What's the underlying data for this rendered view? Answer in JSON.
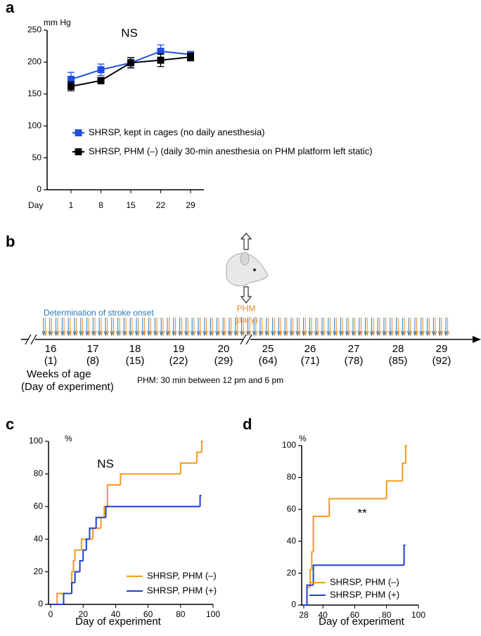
{
  "chart_data": [
    {
      "panel": "a",
      "type": "line",
      "y_unit": "mm Hg",
      "xlabel": "Day",
      "annotation": "NS",
      "categories": [
        "1",
        "8",
        "15",
        "22",
        "29"
      ],
      "ylim": [
        0,
        250
      ],
      "yticks": [
        0,
        50,
        100,
        150,
        200,
        250
      ],
      "series": [
        {
          "name": "SHRSP, kept in cages (no daily anesthesia)",
          "color": "#1f4fe0",
          "values": [
            173,
            188,
            199,
            217,
            212
          ],
          "errors": [
            11,
            9,
            8,
            10,
            4
          ]
        },
        {
          "name": "SHRSP, PHM (–) (daily 30-min anesthesia on PHM platform left static)",
          "color": "#000000",
          "values": [
            162,
            171,
            199,
            203,
            208
          ],
          "errors": [
            7,
            5,
            8,
            10,
            6
          ]
        }
      ]
    },
    {
      "panel": "c",
      "type": "step",
      "y_unit": "%",
      "xlabel": "Day of experiment",
      "annotation": "NS",
      "xlim": [
        0,
        100
      ],
      "xticks": [
        0,
        20,
        40,
        60,
        80,
        100
      ],
      "ylim": [
        0,
        100
      ],
      "yticks": [
        0,
        20,
        40,
        60,
        80,
        100
      ],
      "series": [
        {
          "name": "SHRSP, PHM (–)",
          "color": "#f39a1e",
          "x": [
            0,
            4,
            13,
            14,
            15,
            19,
            26,
            31,
            33,
            35,
            43,
            80,
            90,
            93
          ],
          "values": [
            0,
            6.7,
            20,
            26.7,
            33.3,
            40,
            46.7,
            53.3,
            60,
            73.3,
            80,
            86.7,
            93.3,
            100
          ]
        },
        {
          "name": "SHRSP, PHM (+)",
          "color": "#1f3fd0",
          "x": [
            0,
            8,
            13,
            15,
            18,
            20,
            22,
            24,
            28,
            34,
            92
          ],
          "values": [
            0,
            6.7,
            13.3,
            20,
            26.7,
            33.3,
            40,
            46.7,
            53.3,
            60,
            66.7
          ]
        }
      ]
    },
    {
      "panel": "d",
      "type": "step",
      "y_unit": "%",
      "xlabel": "Day of experiment",
      "annotation": "**",
      "xlim": [
        28,
        100
      ],
      "xticks": [
        28,
        40,
        60,
        80,
        100
      ],
      "ylim": [
        0,
        100
      ],
      "yticks": [
        0,
        20,
        40,
        60,
        80,
        100
      ],
      "series": [
        {
          "name": "SHRSP, PHM (–)",
          "color": "#f39a1e",
          "x": [
            28,
            30,
            32,
            33,
            34,
            44,
            80,
            90,
            92
          ],
          "values": [
            0,
            11.1,
            22.2,
            33.3,
            55.6,
            66.7,
            77.8,
            88.9,
            100
          ]
        },
        {
          "name": "SHRSP, PHM (+)",
          "color": "#1f3fd0",
          "x": [
            28,
            30,
            34,
            91
          ],
          "values": [
            0,
            12.5,
            25,
            37.5
          ]
        }
      ]
    }
  ],
  "timeline": {
    "panel": "b",
    "onset_label": "Determination of stroke onset",
    "phm_label": "PHM",
    "phm_sub": "(daily)",
    "weeks": [
      {
        "week": "16",
        "day": "(1)"
      },
      {
        "week": "17",
        "day": "(8)"
      },
      {
        "week": "18",
        "day": "(15)"
      },
      {
        "week": "19",
        "day": "(22)"
      },
      {
        "week": "20",
        "day": "(29)"
      },
      {
        "week": "25",
        "day": "(64)"
      },
      {
        "week": "26",
        "day": "(71)"
      },
      {
        "week": "27",
        "day": "(78)"
      },
      {
        "week": "28",
        "day": "(85)"
      },
      {
        "week": "29",
        "day": "(92)"
      }
    ],
    "axis_label_1": "Weeks of age",
    "axis_label_2": "(Day of experiment)",
    "note": "PHM: 30 min between 12 pm and 6 pm"
  }
}
